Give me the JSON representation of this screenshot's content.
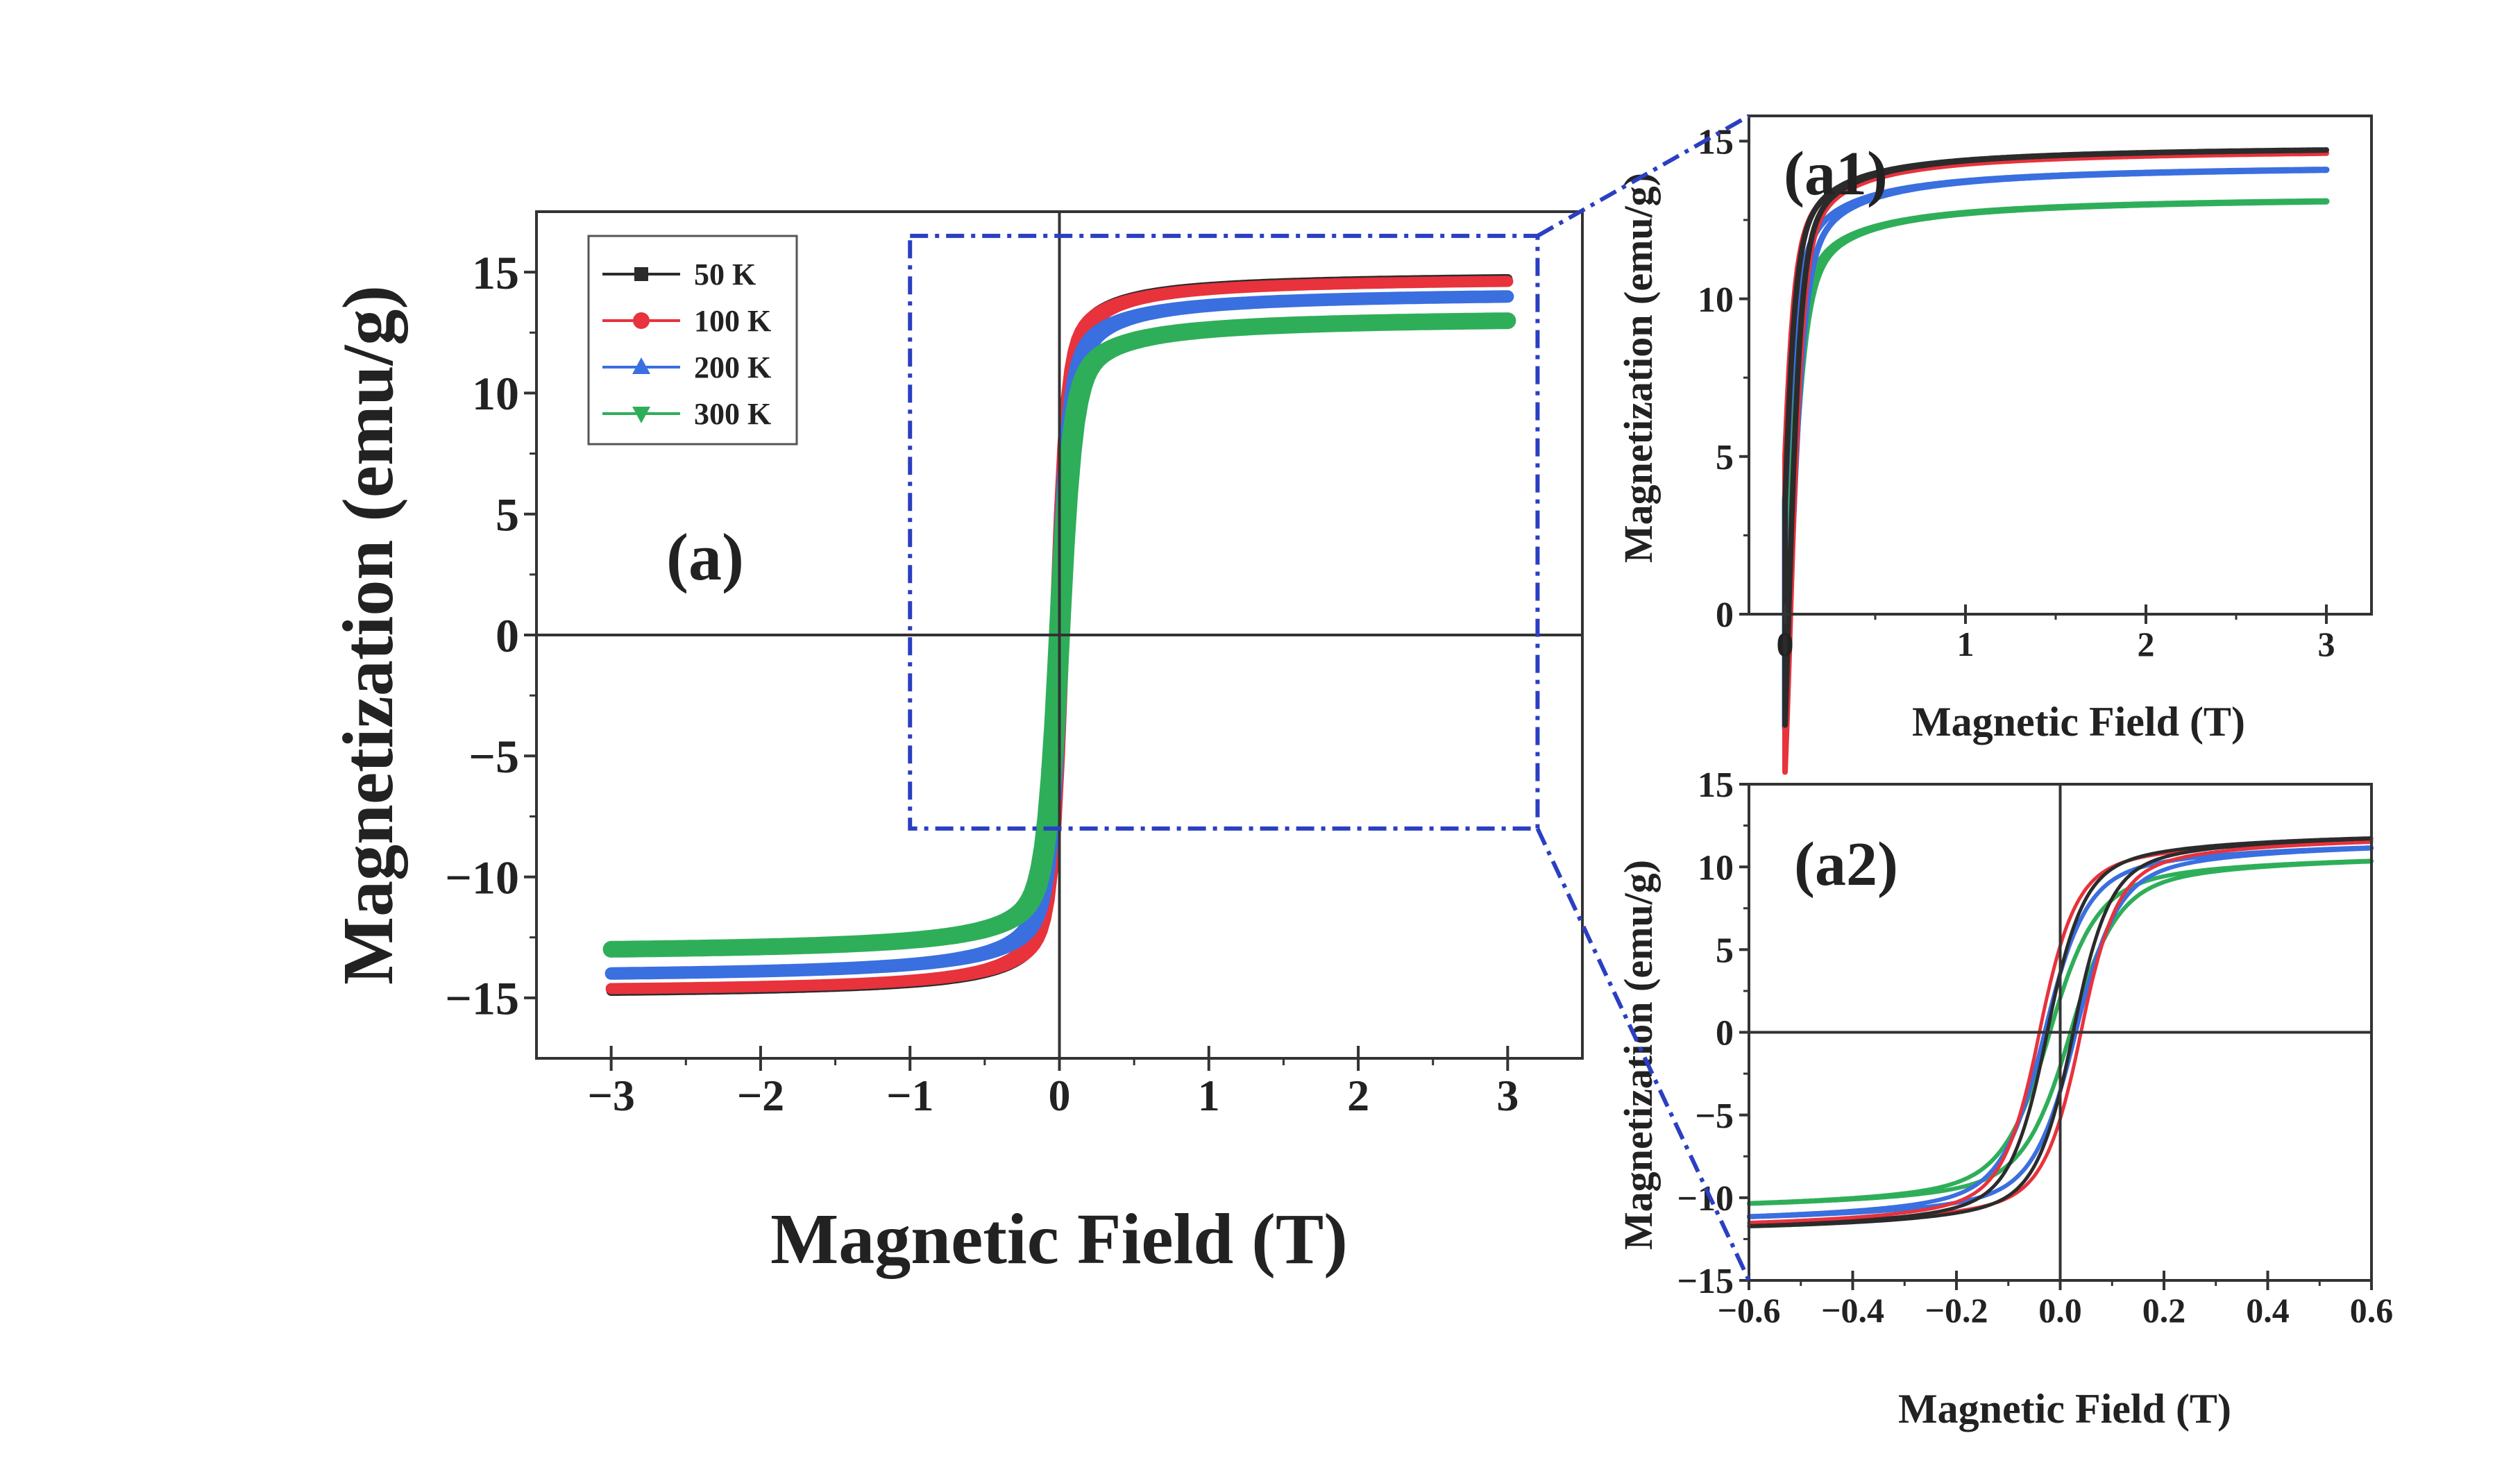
{
  "colors": {
    "50K": "#2b2b2b",
    "100K": "#e8323c",
    "200K": "#3a6fe0",
    "300K": "#2fae5a",
    "zoom_box": "#2b3fc2"
  },
  "chart_data": [
    {
      "id": "main",
      "type": "line",
      "panel_label": "(a)",
      "xlabel": "Magnetic Field (T)",
      "ylabel": "Magnetization (emu/g)",
      "xlim": [
        -3.5,
        3.5
      ],
      "ylim": [
        -17.5,
        17.5
      ],
      "xticks": [
        -3,
        -2,
        -1,
        0,
        1,
        2,
        3
      ],
      "xtick_labels": [
        "−3",
        "−2",
        "−1",
        "0",
        "1",
        "2",
        "3"
      ],
      "yticks": [
        -15,
        -10,
        -5,
        0,
        5,
        10,
        15
      ],
      "ytick_labels": [
        "−15",
        "−10",
        "−5",
        "0",
        "5",
        "10",
        "15"
      ],
      "x_range": [
        -3,
        3
      ],
      "legend": [
        {
          "name": "50 K",
          "marker": "square"
        },
        {
          "name": "100 K",
          "marker": "circle"
        },
        {
          "name": "200 K",
          "marker": "triangle-up"
        },
        {
          "name": "300 K",
          "marker": "triangle-down"
        }
      ],
      "zoom_region": {
        "x": [
          -1,
          3.2
        ],
        "y": [
          -8,
          16.5
        ]
      },
      "series": [
        {
          "name": "50 K",
          "ms": 14.9,
          "hc": 0.02,
          "w": 0.07,
          "k": 0.1
        },
        {
          "name": "100 K",
          "ms": 14.8,
          "hc": 0.03,
          "w": 0.07,
          "k": 0.1
        },
        {
          "name": "200 K",
          "ms": 14.2,
          "hc": 0.025,
          "w": 0.08,
          "k": 0.12
        },
        {
          "name": "300 K",
          "ms": 13.2,
          "hc": 0.015,
          "w": 0.09,
          "k": 0.13
        }
      ]
    },
    {
      "id": "a1",
      "type": "line",
      "panel_label": "(a1)",
      "xlabel": "Magnetic Field (T)",
      "ylabel": "Magnetization (emu/g)",
      "xlim": [
        -0.2,
        3.25
      ],
      "ylim": [
        0,
        15.8
      ],
      "xticks": [
        0,
        1,
        2,
        3
      ],
      "xtick_labels": [
        "0",
        "1",
        "2",
        "3"
      ],
      "yticks": [
        0,
        5,
        10,
        15
      ],
      "ytick_labels": [
        "0",
        "5",
        "10",
        "15"
      ],
      "x_range": [
        0,
        3
      ],
      "series": [
        {
          "name": "50 K",
          "ms": 14.9,
          "hc": 0.02,
          "w": 0.07,
          "k": 0.1
        },
        {
          "name": "100 K",
          "ms": 14.8,
          "hc": 0.03,
          "w": 0.07,
          "k": 0.1
        },
        {
          "name": "200 K",
          "ms": 14.3,
          "hc": 0.025,
          "w": 0.08,
          "k": 0.12
        },
        {
          "name": "300 K",
          "ms": 13.3,
          "hc": 0.015,
          "w": 0.09,
          "k": 0.13
        }
      ]
    },
    {
      "id": "a2",
      "type": "line",
      "panel_label": "(a2)",
      "xlabel": "Magnetic Field (T)",
      "ylabel": "Magnetization (emu/g)",
      "xlim": [
        -0.6,
        0.6
      ],
      "ylim": [
        -15,
        15
      ],
      "xticks": [
        -0.6,
        -0.4,
        -0.2,
        0.0,
        0.2,
        0.4,
        0.6
      ],
      "xtick_labels": [
        "−0.6",
        "−0.4",
        "−0.2",
        "0.0",
        "0.2",
        "0.4",
        "0.6"
      ],
      "yticks": [
        -15,
        -10,
        -5,
        0,
        5,
        10,
        15
      ],
      "ytick_labels": [
        "−15",
        "−10",
        "−5",
        "0",
        "5",
        "10",
        "15"
      ],
      "x_range": [
        -0.6,
        0.6
      ],
      "series": [
        {
          "name": "50 K",
          "ms": 12.4,
          "hc": 0.025,
          "w": 0.07,
          "k": 0.1
        },
        {
          "name": "100 K",
          "ms": 12.2,
          "hc": 0.04,
          "w": 0.07,
          "k": 0.1
        },
        {
          "name": "200 K",
          "ms": 11.9,
          "hc": 0.03,
          "w": 0.08,
          "k": 0.12
        },
        {
          "name": "300 K",
          "ms": 11.1,
          "hc": 0.02,
          "w": 0.09,
          "k": 0.13
        }
      ]
    }
  ]
}
